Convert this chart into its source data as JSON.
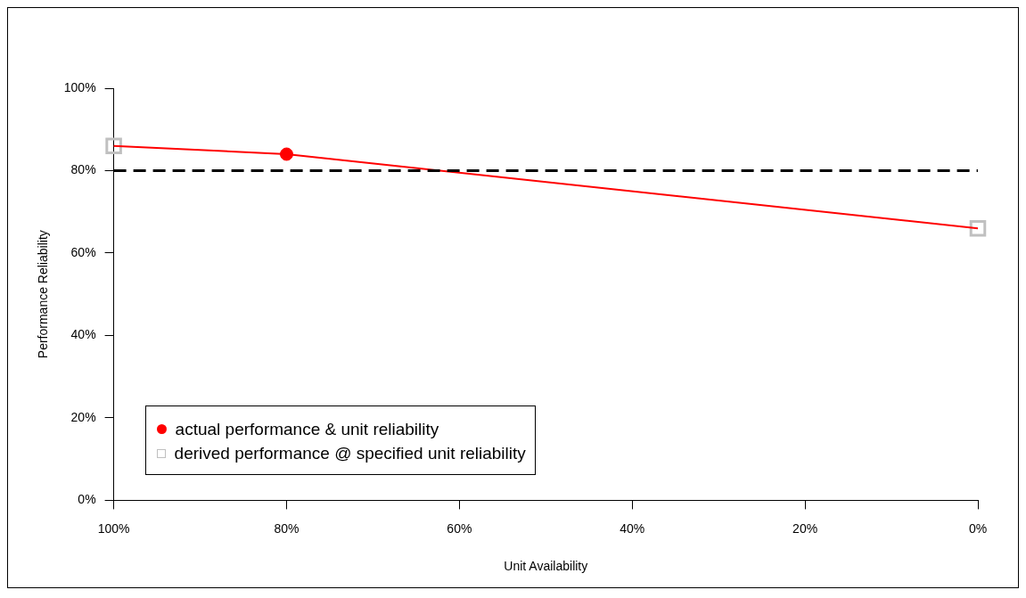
{
  "chart_data": {
    "type": "line",
    "xlabel": "Unit Availability",
    "ylabel": "Performance Reliability",
    "xlim": [
      100,
      0
    ],
    "xticks": [
      {
        "value": 100,
        "label": "100%"
      },
      {
        "value": 80,
        "label": "80%"
      },
      {
        "value": 60,
        "label": "60%"
      },
      {
        "value": 40,
        "label": "40%"
      },
      {
        "value": 20,
        "label": "20%"
      },
      {
        "value": 0,
        "label": "0%"
      }
    ],
    "ylim": [
      0,
      100
    ],
    "yticks": [
      {
        "value": 0,
        "label": "0%"
      },
      {
        "value": 20,
        "label": "20%"
      },
      {
        "value": 40,
        "label": "40%"
      },
      {
        "value": 60,
        "label": "60%"
      },
      {
        "value": 80,
        "label": "80%"
      },
      {
        "value": 100,
        "label": "100%"
      }
    ],
    "series": [
      {
        "type": "line",
        "color": "#ff0000",
        "x": [
          100,
          80,
          0
        ],
        "values": [
          86,
          84,
          66
        ],
        "marker": "none",
        "line_style": "solid"
      },
      {
        "type": "scatter",
        "name": "actual performance & unit reliability",
        "color": "#ff0000",
        "x": [
          80
        ],
        "values": [
          84
        ],
        "marker": "circle"
      },
      {
        "type": "scatter",
        "name": "derived performance @ specified unit reliability",
        "color": "#c0c0c0",
        "x": [
          100,
          0
        ],
        "values": [
          86,
          66
        ],
        "marker": "square"
      }
    ],
    "ref_lines": [
      {
        "axis": "y",
        "value": 80,
        "color": "#000000",
        "line_style": "dashed"
      }
    ],
    "grid": false,
    "legend": "bottom left"
  }
}
